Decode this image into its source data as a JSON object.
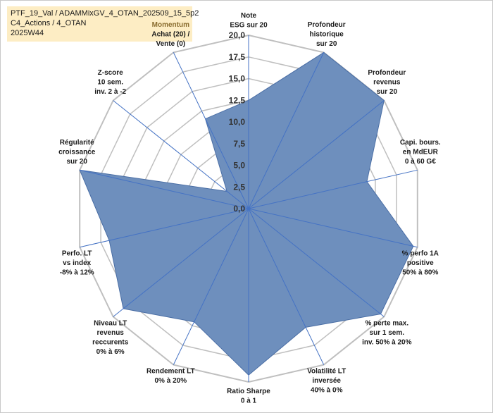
{
  "chart_data": {
    "type": "radar",
    "title_lines": [
      "PTF_19_Val / ADAMMixGV_4_OTAN_202509_15_5p2",
      "C4_Actions / 4_OTAN",
      "2025W44"
    ],
    "rlim": [
      0,
      20
    ],
    "ticks": [
      "0,0",
      "2,5",
      "5,0",
      "7,5",
      "10,0",
      "12,5",
      "15,0",
      "17,5",
      "20,0"
    ],
    "tick_values": [
      0,
      2.5,
      5,
      7.5,
      10,
      12.5,
      15,
      17.5,
      20
    ],
    "grid": true,
    "colors": {
      "fill": "#6e8fbd",
      "stroke": "#4a6ea5",
      "axis": "#4472c4",
      "grid": "#bfbfbf",
      "title_bg": "#fdedc4"
    },
    "axes": [
      {
        "lines": [
          "Note",
          "ESG sur 20"
        ],
        "value": 12.5
      },
      {
        "lines": [
          "Profondeur",
          "historique",
          "sur 20"
        ],
        "value": 20
      },
      {
        "lines": [
          "Profondeur",
          "revenus",
          "sur 20"
        ],
        "value": 20
      },
      {
        "lines": [
          "Capi. bours.",
          "en MdEUR",
          "0 à 60 G€"
        ],
        "value": 14
      },
      {
        "lines": [
          "% perfo 1A",
          "positive",
          "50% à 80%"
        ],
        "value": 19.5
      },
      {
        "lines": [
          "% perte max.",
          "sur 1 sem.",
          "inv. 50% à 20%"
        ],
        "value": 19.5
      },
      {
        "lines": [
          "Volatilité LT",
          "inversée",
          "40% à 0%"
        ],
        "value": 15.2
      },
      {
        "lines": [
          "Ratio Sharpe",
          "0 à 1"
        ],
        "value": 19.2
      },
      {
        "lines": [
          "Rendement LT",
          "0% à 20%"
        ],
        "value": 14.5
      },
      {
        "lines": [
          "Niveau LT",
          "revenus",
          "reccurents",
          "0% à 6%"
        ],
        "value": 18.5
      },
      {
        "lines": [
          "Perfo. LT",
          "vs index",
          "-8% à 12%"
        ],
        "value": 16.5
      },
      {
        "lines": [
          "Régularité",
          "croissance",
          "sur 20"
        ],
        "value": 20
      },
      {
        "lines": [
          "Z-score",
          "10 sem.",
          "inv. 2 à -2"
        ],
        "value": 3.2
      },
      {
        "lines": [
          "Momentum",
          "Achat (20) /",
          "Vente (0)"
        ],
        "value": 11.5
      }
    ]
  }
}
